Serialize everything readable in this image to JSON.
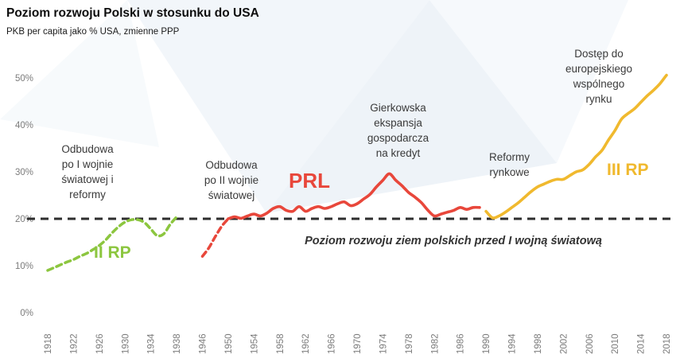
{
  "title": "Poziom rozwoju Polski w stosunku do USA",
  "subtitle": "PKB per capita jako % USA, zmienne PPP",
  "chart_data": {
    "type": "line",
    "title": "Poziom rozwoju Polski w stosunku do USA",
    "subtitle": "PKB per capita jako % USA, zmienne PPP",
    "xlabel": "",
    "ylabel": "",
    "ylim": [
      0,
      55
    ],
    "grid": false,
    "legend": "none",
    "y_ticks": [
      "0%",
      "10%",
      "20%",
      "30%",
      "40%",
      "50%"
    ],
    "y_tick_values": [
      0,
      10,
      20,
      30,
      40,
      50
    ],
    "x_ticks": [
      1918,
      1922,
      1926,
      1930,
      1934,
      1938,
      1946,
      1950,
      1954,
      1958,
      1962,
      1966,
      1970,
      1974,
      1978,
      1982,
      1986,
      1990,
      1994,
      1998,
      2002,
      2006,
      2010,
      2014,
      2018
    ],
    "reference_line": {
      "value": 20,
      "label": "Poziom rozwoju ziem polskich przed I wojną światową",
      "color": "#2d2d2d"
    },
    "colors": {
      "ii_rp": "#8cc63f",
      "prl": "#e8473b",
      "iii_rp": "#f0b92e",
      "annotation_text": "#3a3a3a"
    },
    "annotations": {
      "interwar": "Odbudowa\npo I wojnie\nświatowej i\nreformy",
      "postwar": "Odbudowa\npo II wojnie\nświatowej",
      "gierek": "Gierkowska\nekspansja\ngospodarcza\nna kredyt",
      "reforms": "Reformy\nrynkowe",
      "eu_market": "Dostęp do\neuropejskiego\nwspólnego\nrynku",
      "ii_rp": "II RP",
      "prl": "PRL",
      "iii_rp": "III RP"
    },
    "series": [
      {
        "id": "ii-rp",
        "name": "II RP",
        "color": "#8cc63f",
        "dash": "7 5",
        "width": 3.5,
        "points": [
          [
            1918,
            9
          ],
          [
            1919,
            9.6
          ],
          [
            1920,
            10.2
          ],
          [
            1921,
            10.8
          ],
          [
            1922,
            11.3
          ],
          [
            1923,
            12
          ],
          [
            1924,
            12.6
          ],
          [
            1925,
            13.4
          ],
          [
            1926,
            14.3
          ],
          [
            1927,
            15.5
          ],
          [
            1928,
            17
          ],
          [
            1929,
            18.3
          ],
          [
            1930,
            19.3
          ],
          [
            1931,
            19.8
          ],
          [
            1932,
            19.8
          ],
          [
            1933,
            19.2
          ],
          [
            1934,
            17.8
          ],
          [
            1935,
            16.4
          ],
          [
            1936,
            16.8
          ],
          [
            1937,
            18.8
          ],
          [
            1938,
            20.4
          ]
        ]
      },
      {
        "id": "prl-recovery",
        "name": "PRL (odbudowa)",
        "color": "#e8473b",
        "dash": "7 5",
        "width": 3.5,
        "points": [
          [
            1946,
            12
          ],
          [
            1947,
            13.8
          ],
          [
            1948,
            16.2
          ],
          [
            1949,
            18.4
          ],
          [
            1950,
            20
          ]
        ]
      },
      {
        "id": "prl",
        "name": "PRL",
        "color": "#e8473b",
        "dash": null,
        "width": 3.6,
        "points": [
          [
            1950,
            20
          ],
          [
            1951,
            20.4
          ],
          [
            1952,
            20.1
          ],
          [
            1953,
            20.6
          ],
          [
            1954,
            21
          ],
          [
            1955,
            20.6
          ],
          [
            1956,
            21.2
          ],
          [
            1957,
            22.2
          ],
          [
            1958,
            22.6
          ],
          [
            1959,
            21.8
          ],
          [
            1960,
            21.6
          ],
          [
            1961,
            22.6
          ],
          [
            1962,
            21.6
          ],
          [
            1963,
            22.2
          ],
          [
            1964,
            22.6
          ],
          [
            1965,
            22.2
          ],
          [
            1966,
            22.6
          ],
          [
            1967,
            23.2
          ],
          [
            1968,
            23.6
          ],
          [
            1969,
            22.8
          ],
          [
            1970,
            23.2
          ],
          [
            1971,
            24.2
          ],
          [
            1972,
            25.2
          ],
          [
            1973,
            26.8
          ],
          [
            1974,
            28.2
          ],
          [
            1975,
            29.6
          ],
          [
            1976,
            28.2
          ],
          [
            1977,
            27
          ],
          [
            1978,
            25.6
          ],
          [
            1979,
            24.6
          ],
          [
            1980,
            23.4
          ],
          [
            1981,
            21.8
          ],
          [
            1982,
            20.6
          ],
          [
            1983,
            21
          ],
          [
            1984,
            21.4
          ],
          [
            1985,
            21.8
          ],
          [
            1986,
            22.4
          ],
          [
            1987,
            22
          ],
          [
            1988,
            22.4
          ],
          [
            1989,
            22.4
          ]
        ]
      },
      {
        "id": "iii-rp",
        "name": "III RP",
        "color": "#f0b92e",
        "dash": null,
        "width": 3.6,
        "points": [
          [
            1990,
            21.6
          ],
          [
            1991,
            20.2
          ],
          [
            1992,
            20.6
          ],
          [
            1993,
            21.4
          ],
          [
            1994,
            22.4
          ],
          [
            1995,
            23.4
          ],
          [
            1996,
            24.6
          ],
          [
            1997,
            25.8
          ],
          [
            1998,
            26.8
          ],
          [
            1999,
            27.4
          ],
          [
            2000,
            28
          ],
          [
            2001,
            28.4
          ],
          [
            2002,
            28.4
          ],
          [
            2003,
            29.2
          ],
          [
            2004,
            30
          ],
          [
            2005,
            30.4
          ],
          [
            2006,
            31.6
          ],
          [
            2007,
            33.2
          ],
          [
            2008,
            34.6
          ],
          [
            2009,
            36.8
          ],
          [
            2010,
            38.8
          ],
          [
            2011,
            41.2
          ],
          [
            2012,
            42.4
          ],
          [
            2013,
            43.4
          ],
          [
            2014,
            44.8
          ],
          [
            2015,
            46.2
          ],
          [
            2016,
            47.4
          ],
          [
            2017,
            48.8
          ],
          [
            2018,
            50.6
          ]
        ]
      }
    ]
  }
}
